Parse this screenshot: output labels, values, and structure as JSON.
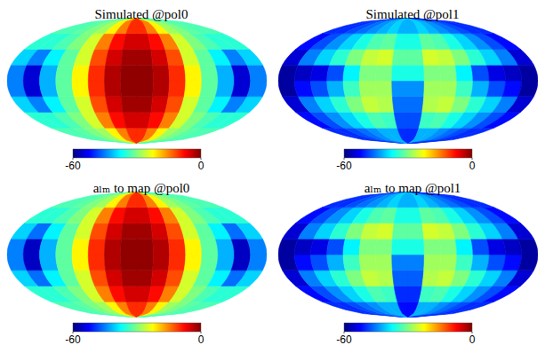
{
  "chart_data": [
    {
      "type": "heatmap",
      "title": "Simulated @pol0",
      "tick_labels": false,
      "xlim": [
        -180,
        180
      ],
      "ylim": [
        -90,
        90
      ],
      "x": [
        -168.75,
        -146.25,
        -123.75,
        -101.25,
        -78.75,
        -56.25,
        -33.75,
        -11.25,
        11.25,
        33.75,
        56.25,
        78.75,
        101.25,
        123.75,
        146.25,
        168.75
      ],
      "y": [
        -78.75,
        -56.25,
        -33.75,
        -11.25,
        11.25,
        33.75,
        56.25,
        78.75
      ],
      "values": [
        [
          -33,
          -33,
          -32,
          -30,
          -28,
          -22,
          -15,
          -10,
          -10,
          -15,
          -22,
          -28,
          -30,
          -32,
          -33,
          -33
        ],
        [
          -35,
          -35,
          -33,
          -30,
          -25,
          -15,
          -8,
          -5,
          -5,
          -8,
          -15,
          -25,
          -30,
          -33,
          -35,
          -35
        ],
        [
          -40,
          -45,
          -38,
          -32,
          -25,
          -12,
          -5,
          -2,
          -2,
          -5,
          -12,
          -25,
          -32,
          -38,
          -45,
          -40
        ],
        [
          -45,
          -55,
          -42,
          -32,
          -22,
          -10,
          -3,
          -1,
          -1,
          -3,
          -10,
          -22,
          -32,
          -42,
          -55,
          -45
        ],
        [
          -45,
          -55,
          -42,
          -32,
          -22,
          -10,
          -3,
          -1,
          -1,
          -3,
          -10,
          -22,
          -32,
          -42,
          -55,
          -45
        ],
        [
          -40,
          -45,
          -38,
          -32,
          -25,
          -12,
          -5,
          -2,
          -2,
          -5,
          -12,
          -25,
          -32,
          -38,
          -45,
          -40
        ],
        [
          -35,
          -35,
          -33,
          -30,
          -25,
          -15,
          -8,
          -5,
          -5,
          -8,
          -15,
          -25,
          -30,
          -33,
          -35,
          -35
        ],
        [
          -33,
          -33,
          -32,
          -30,
          -28,
          -22,
          -15,
          -10,
          -10,
          -15,
          -22,
          -28,
          -30,
          -32,
          -33,
          -33
        ]
      ],
      "color_range": [
        -60,
        0
      ],
      "color_ticks": [
        -60,
        0
      ]
    },
    {
      "type": "heatmap",
      "title": "Simulated @pol1",
      "tick_labels": false,
      "xlim": [
        -180,
        180
      ],
      "ylim": [
        -90,
        90
      ],
      "x": [
        -168.75,
        -146.25,
        -123.75,
        -101.25,
        -78.75,
        -56.25,
        -33.75,
        -11.25,
        11.25,
        33.75,
        56.25,
        78.75,
        101.25,
        123.75,
        146.25,
        168.75
      ],
      "y": [
        -78.75,
        -56.25,
        -33.75,
        -11.25,
        11.25,
        33.75,
        56.25,
        78.75
      ],
      "values": [
        [
          -50,
          -50,
          -48,
          -46,
          -44,
          -42,
          -42,
          -50,
          -50,
          -42,
          -42,
          -44,
          -46,
          -48,
          -50,
          -50
        ],
        [
          -52,
          -48,
          -44,
          -40,
          -36,
          -33,
          -34,
          -48,
          -48,
          -34,
          -33,
          -36,
          -40,
          -44,
          -48,
          -52
        ],
        [
          -55,
          -45,
          -40,
          -35,
          -30,
          -26,
          -27,
          -46,
          -46,
          -27,
          -26,
          -30,
          -35,
          -40,
          -45,
          -55
        ],
        [
          -58,
          -52,
          -48,
          -42,
          -34,
          -28,
          -28,
          -44,
          -44,
          -28,
          -28,
          -34,
          -42,
          -48,
          -52,
          -58
        ],
        [
          -58,
          -56,
          -54,
          -48,
          -38,
          -30,
          -30,
          -36,
          -36,
          -30,
          -30,
          -38,
          -48,
          -54,
          -56,
          -58
        ],
        [
          -55,
          -45,
          -40,
          -35,
          -30,
          -26,
          -25,
          -32,
          -32,
          -25,
          -26,
          -30,
          -35,
          -40,
          -45,
          -55
        ],
        [
          -52,
          -48,
          -44,
          -40,
          -36,
          -33,
          -32,
          -36,
          -36,
          -32,
          -33,
          -36,
          -40,
          -44,
          -48,
          -52
        ],
        [
          -50,
          -50,
          -48,
          -46,
          -44,
          -42,
          -40,
          -42,
          -42,
          -40,
          -42,
          -44,
          -46,
          -48,
          -50,
          -50
        ]
      ],
      "color_range": [
        -60,
        0
      ],
      "color_ticks": [
        -60,
        0
      ]
    },
    {
      "type": "heatmap",
      "title": "aₗₘ to map @pol0",
      "tick_labels": false,
      "xlim": [
        -180,
        180
      ],
      "ylim": [
        -90,
        90
      ],
      "x": [
        -168.75,
        -146.25,
        -123.75,
        -101.25,
        -78.75,
        -56.25,
        -33.75,
        -11.25,
        11.25,
        33.75,
        56.25,
        78.75,
        101.25,
        123.75,
        146.25,
        168.75
      ],
      "y": [
        -78.75,
        -56.25,
        -33.75,
        -11.25,
        11.25,
        33.75,
        56.25,
        78.75
      ],
      "values": [
        [
          -33,
          -33,
          -32,
          -30,
          -28,
          -22,
          -15,
          -10,
          -10,
          -15,
          -22,
          -28,
          -30,
          -32,
          -33,
          -33
        ],
        [
          -35,
          -35,
          -33,
          -30,
          -25,
          -15,
          -8,
          -5,
          -5,
          -8,
          -15,
          -25,
          -30,
          -33,
          -35,
          -35
        ],
        [
          -40,
          -46,
          -38,
          -32,
          -25,
          -12,
          -5,
          -2,
          -2,
          -5,
          -12,
          -25,
          -32,
          -38,
          -46,
          -40
        ],
        [
          -45,
          -56,
          -42,
          -32,
          -22,
          -10,
          -3,
          -1,
          -1,
          -3,
          -10,
          -22,
          -32,
          -42,
          -56,
          -45
        ],
        [
          -45,
          -56,
          -42,
          -32,
          -22,
          -10,
          -3,
          -1,
          -1,
          -3,
          -10,
          -22,
          -32,
          -42,
          -56,
          -45
        ],
        [
          -40,
          -46,
          -38,
          -32,
          -25,
          -12,
          -5,
          -2,
          -2,
          -5,
          -12,
          -25,
          -32,
          -38,
          -46,
          -40
        ],
        [
          -35,
          -35,
          -33,
          -30,
          -25,
          -15,
          -8,
          -5,
          -5,
          -8,
          -15,
          -25,
          -30,
          -33,
          -35,
          -35
        ],
        [
          -33,
          -33,
          -32,
          -30,
          -28,
          -22,
          -15,
          -10,
          -10,
          -15,
          -22,
          -28,
          -30,
          -32,
          -33,
          -33
        ]
      ],
      "color_range": [
        -60,
        0
      ],
      "color_ticks": [
        -60,
        0
      ]
    },
    {
      "type": "heatmap",
      "title": "aₗₘ to map @pol1",
      "tick_labels": false,
      "xlim": [
        -180,
        180
      ],
      "ylim": [
        -90,
        90
      ],
      "x": [
        -168.75,
        -146.25,
        -123.75,
        -101.25,
        -78.75,
        -56.25,
        -33.75,
        -11.25,
        11.25,
        33.75,
        56.25,
        78.75,
        101.25,
        123.75,
        146.25,
        168.75
      ],
      "y": [
        -78.75,
        -56.25,
        -33.75,
        -11.25,
        11.25,
        33.75,
        56.25,
        78.75
      ],
      "values": [
        [
          -50,
          -50,
          -48,
          -46,
          -44,
          -42,
          -42,
          -52,
          -52,
          -42,
          -42,
          -44,
          -46,
          -48,
          -50,
          -50
        ],
        [
          -52,
          -48,
          -44,
          -40,
          -36,
          -33,
          -34,
          -50,
          -50,
          -34,
          -33,
          -36,
          -40,
          -44,
          -48,
          -52
        ],
        [
          -55,
          -45,
          -40,
          -35,
          -30,
          -26,
          -27,
          -47,
          -47,
          -27,
          -26,
          -30,
          -35,
          -40,
          -45,
          -55
        ],
        [
          -58,
          -52,
          -48,
          -42,
          -34,
          -28,
          -28,
          -45,
          -45,
          -28,
          -28,
          -34,
          -42,
          -48,
          -52,
          -58
        ],
        [
          -58,
          -56,
          -54,
          -48,
          -38,
          -30,
          -30,
          -36,
          -36,
          -30,
          -30,
          -38,
          -48,
          -54,
          -56,
          -58
        ],
        [
          -55,
          -45,
          -40,
          -35,
          -30,
          -26,
          -25,
          -32,
          -32,
          -25,
          -26,
          -30,
          -35,
          -40,
          -45,
          -55
        ],
        [
          -52,
          -48,
          -44,
          -40,
          -36,
          -33,
          -32,
          -36,
          -36,
          -32,
          -33,
          -36,
          -40,
          -44,
          -48,
          -52
        ],
        [
          -50,
          -50,
          -48,
          -46,
          -44,
          -42,
          -40,
          -42,
          -42,
          -40,
          -42,
          -44,
          -46,
          -48,
          -50,
          -50
        ]
      ],
      "color_range": [
        -60,
        0
      ],
      "color_ticks": [
        -60,
        0
      ]
    }
  ]
}
